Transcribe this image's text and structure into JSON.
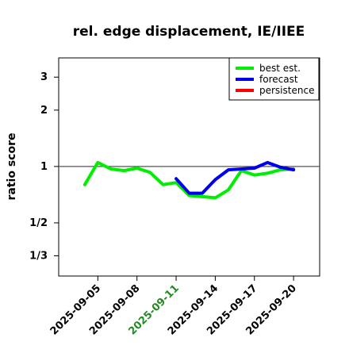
{
  "chart_data": {
    "type": "line",
    "title": "rel. edge displacement, IE/IIEE",
    "ylabel": "ratio score",
    "xlabel": "",
    "x_tick_labels": [
      "2025-09-05",
      "2025-09-08",
      "2025-09-11",
      "2025-09-14",
      "2025-09-17",
      "2025-09-20"
    ],
    "x_tick_dates": [
      "2025-09-05",
      "2025-09-08",
      "2025-09-11",
      "2025-09-14",
      "2025-09-17",
      "2025-09-20"
    ],
    "highlighted_tick": "2025-09-11",
    "highlight_color": "#228b22",
    "y_scale": "log",
    "y_ticks": [
      0.3333,
      0.5,
      1,
      2,
      3
    ],
    "y_tick_labels": [
      "1/3",
      "1/2",
      "1",
      "2",
      "3"
    ],
    "ylim": [
      0.26,
      3.8
    ],
    "xlim": [
      "2025-09-02",
      "2025-09-22"
    ],
    "reference_line": 1,
    "grid": false,
    "legend_position": "top-right",
    "series": [
      {
        "name": "best est.",
        "color": "#00ee00",
        "x": [
          "2025-09-04",
          "2025-09-05",
          "2025-09-06",
          "2025-09-07",
          "2025-09-08",
          "2025-09-09",
          "2025-09-10",
          "2025-09-11",
          "2025-09-12",
          "2025-09-13",
          "2025-09-14",
          "2025-09-15",
          "2025-09-16",
          "2025-09-17",
          "2025-09-18",
          "2025-09-19",
          "2025-09-20"
        ],
        "values": [
          0.8,
          1.05,
          0.97,
          0.95,
          0.98,
          0.93,
          0.8,
          0.82,
          0.7,
          0.69,
          0.68,
          0.75,
          0.95,
          0.9,
          0.92,
          0.96,
          0.97
        ]
      },
      {
        "name": "forecast",
        "color": "#0000ee",
        "x": [
          "2025-09-11",
          "2025-09-12",
          "2025-09-13",
          "2025-09-14",
          "2025-09-15",
          "2025-09-16",
          "2025-09-17",
          "2025-09-18",
          "2025-09-19",
          "2025-09-20"
        ],
        "values": [
          0.86,
          0.72,
          0.72,
          0.85,
          0.96,
          0.97,
          0.98,
          1.05,
          0.99,
          0.96
        ]
      },
      {
        "name": "persistence",
        "color": "#ff0000",
        "x": [],
        "values": []
      }
    ]
  }
}
